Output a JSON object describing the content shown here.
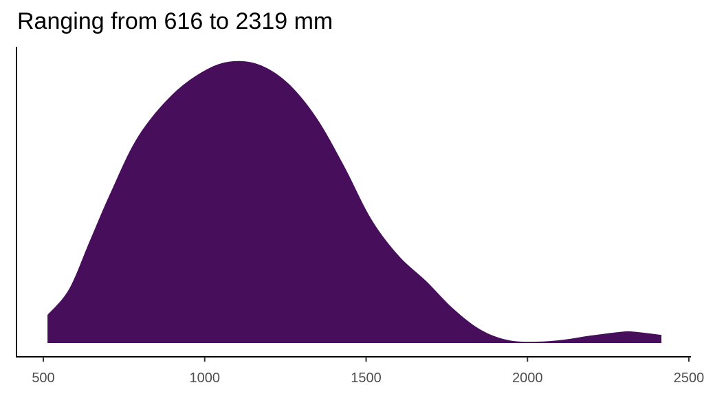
{
  "chart_data": {
    "type": "area",
    "title": "Ranging from 616 to 2319 mm",
    "xlabel": "",
    "ylabel": "",
    "xlim": [
      420,
      2500
    ],
    "ylim": [
      0,
      1.1
    ],
    "grid": false,
    "fill_color": "#470E5C",
    "x_ticks": [
      500,
      1000,
      1500,
      2000,
      2500
    ],
    "x_tick_labels": [
      "500",
      "1000",
      "1500",
      "2000",
      "2500"
    ],
    "series": [
      {
        "x": [
          513,
          579,
          643,
          707,
          792,
          898,
          1005,
          1090,
          1175,
          1260,
          1346,
          1431,
          1516,
          1601,
          1686,
          1772,
          1857,
          1942,
          2027,
          2112,
          2198,
          2283,
          2325,
          2415
        ],
        "y": [
          0.1,
          0.19,
          0.36,
          0.53,
          0.73,
          0.88,
          0.97,
          1.0,
          0.985,
          0.92,
          0.8,
          0.63,
          0.44,
          0.31,
          0.22,
          0.12,
          0.046,
          0.01,
          0.005,
          0.012,
          0.027,
          0.039,
          0.041,
          0.029
        ]
      }
    ]
  }
}
